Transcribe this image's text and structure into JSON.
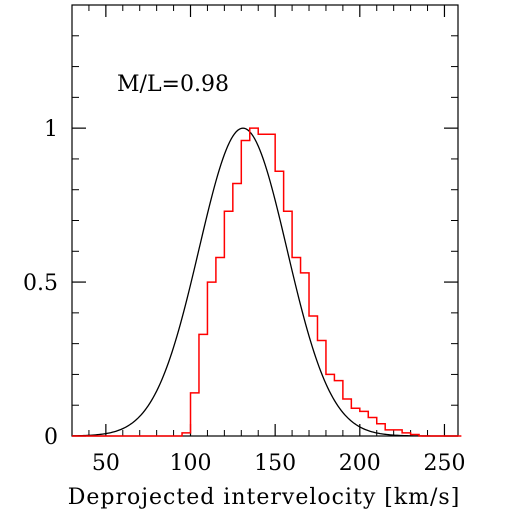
{
  "chart_data": {
    "type": "line",
    "title": "",
    "xlabel": "Deprojected intervelocity [km/s]",
    "ylabel": "",
    "xlim": [
      30,
      258
    ],
    "ylim": [
      0,
      1.4
    ],
    "xticks": [
      50,
      100,
      150,
      200,
      250
    ],
    "yticks": [
      0,
      0.5,
      1
    ],
    "xtick_labels": [
      "50",
      "100",
      "150",
      "200",
      "250"
    ],
    "ytick_labels": [
      "0",
      "0.5",
      "1"
    ],
    "grid": false,
    "legend": "none",
    "annotation": "M/L=0.98",
    "series": [
      {
        "kind": "step",
        "color": "#ff0000",
        "bin_width": 5,
        "bin_edges_start": 30,
        "values": [
          0,
          0,
          0,
          0,
          0,
          0,
          0,
          0,
          0,
          0,
          0,
          0,
          0,
          0.01,
          0.14,
          0.33,
          0.5,
          0.58,
          0.73,
          0.82,
          0.96,
          1.0,
          0.98,
          0.98,
          0.86,
          0.73,
          0.58,
          0.53,
          0.39,
          0.31,
          0.2,
          0.18,
          0.12,
          0.09,
          0.08,
          0.06,
          0.04,
          0.02,
          0.02,
          0.01,
          0.005,
          0,
          0,
          0,
          0,
          0
        ]
      },
      {
        "kind": "curve",
        "color": "#000000",
        "model": "gaussian",
        "amplitude": 1.0,
        "mean": 131,
        "sigma": 26
      }
    ]
  }
}
